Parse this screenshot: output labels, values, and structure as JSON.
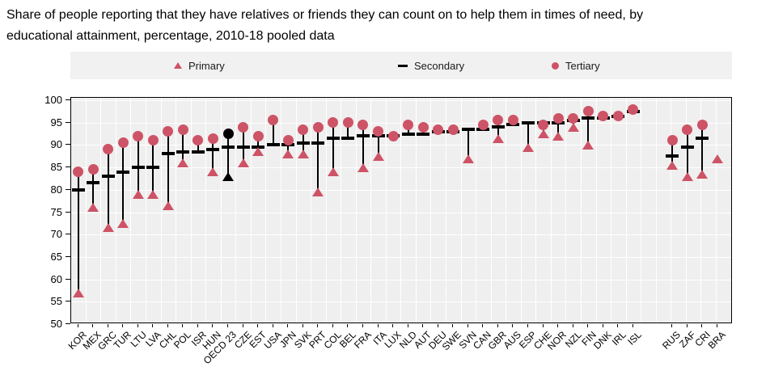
{
  "header": {
    "title_lines": [
      "Share of people reporting that they have relatives or friends they can count on to help them in times of need, by",
      "educational attainment, percentage, 2010-18 pooled data"
    ]
  },
  "legend": {
    "items": [
      {
        "label": "Primary",
        "marker": "triangle-icon",
        "color": "#cd5366"
      },
      {
        "label": "Secondary",
        "marker": "dash-icon",
        "color": "#000000"
      },
      {
        "label": "Tertiary",
        "marker": "circle-icon",
        "color": "#cd5366"
      }
    ]
  },
  "chart_data": {
    "type": "scatter",
    "subtype": "dot-plot-with-range-lines",
    "title": "Share of people reporting that they have relatives or friends they can count on to help them in times of need, by educational attainment, percentage, 2010-18 pooled data",
    "unit": "percentage",
    "ylim": [
      50,
      100
    ],
    "ytick_step": 5,
    "ytick_labels": [
      "50",
      "55",
      "60",
      "65",
      "70",
      "75",
      "80",
      "85",
      "90",
      "95",
      "100"
    ],
    "grid": "white-on-gray",
    "legend_position": "top",
    "highlight_category": "OECD 23",
    "gap_after_index": 37,
    "colors": {
      "marker_red": "#cd5366",
      "secondary_dash": "#000000",
      "highlight_black": "#000000",
      "plot_background": "#efefef",
      "gridline": "#ffffff"
    },
    "categories": [
      "KOR",
      "MEX",
      "GRC",
      "TUR",
      "LTU",
      "LVA",
      "CHL",
      "POL",
      "ISR",
      "HUN",
      "OECD 23",
      "CZE",
      "EST",
      "USA",
      "JPN",
      "SVK",
      "PRT",
      "COL",
      "BEL",
      "FRA",
      "ITA",
      "LUX",
      "NLD",
      "AUT",
      "DEU",
      "SWE",
      "SVN",
      "CAN",
      "GBR",
      "AUS",
      "ESP",
      "CHE",
      "NOR",
      "NZL",
      "FIN",
      "DNK",
      "IRL",
      "ISL",
      "RUS",
      "ZAF",
      "CRI",
      "BRA"
    ],
    "series": [
      {
        "name": "Primary",
        "marker": "triangle",
        "values": [
          57,
          76,
          71.5,
          72.5,
          79,
          79,
          76.5,
          86,
          null,
          84,
          83,
          86,
          88.5,
          null,
          88,
          88,
          79.5,
          84,
          null,
          85,
          87.5,
          null,
          null,
          null,
          null,
          null,
          87,
          null,
          91.5,
          null,
          89.5,
          92.5,
          92,
          94,
          90,
          null,
          null,
          null,
          85.5,
          83,
          83.5,
          87
        ]
      },
      {
        "name": "Secondary",
        "marker": "dash",
        "values": [
          80,
          81.5,
          83,
          84,
          85,
          85,
          88,
          88.5,
          88.5,
          89,
          89.5,
          89.5,
          89.5,
          90,
          90,
          90.5,
          90.5,
          91.5,
          91.5,
          92,
          92,
          92,
          92.5,
          92.5,
          93,
          93,
          93.5,
          93.5,
          94,
          94.5,
          95,
          95,
          95,
          95.5,
          96,
          96,
          96.3,
          97.5,
          87.5,
          89.5,
          91.5,
          null
        ]
      },
      {
        "name": "Tertiary",
        "marker": "circle",
        "values": [
          84,
          84.5,
          89,
          90.5,
          92,
          91,
          93,
          93.5,
          91,
          91.5,
          92.5,
          94,
          92,
          95.5,
          91,
          93.5,
          94,
          95,
          95,
          94.5,
          93,
          92,
          94.5,
          94,
          93.5,
          93.5,
          null,
          94.5,
          95.5,
          95.5,
          null,
          94.5,
          96,
          96,
          97.5,
          96.5,
          96.5,
          98,
          91,
          93.5,
          94.5,
          null
        ]
      }
    ]
  }
}
